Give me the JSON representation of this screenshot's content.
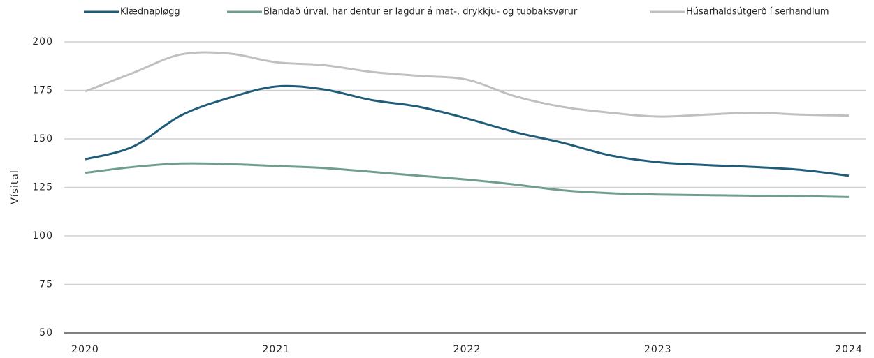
{
  "chart_data": {
    "type": "line",
    "y_label": "Vísital",
    "x": [
      2020,
      2020.25,
      2020.5,
      2020.75,
      2021,
      2021.25,
      2021.5,
      2021.75,
      2022,
      2022.25,
      2022.5,
      2022.75,
      2023,
      2023.25,
      2023.5,
      2023.75,
      2024
    ],
    "series": [
      {
        "name": "Klædnapløgg",
        "color": "#1f5c7a",
        "values": [
          139.5,
          146,
          162,
          171,
          177,
          175.5,
          170,
          166.5,
          160.5,
          153.5,
          148,
          141.5,
          138,
          136.5,
          135.5,
          134,
          131
        ]
      },
      {
        "name": "Blandað úrval, har dentur er lagdur á mat-, drykkju- og tubbaksvørur",
        "color": "#6f9e8a",
        "values": [
          132.5,
          135.5,
          137.3,
          137,
          136,
          135,
          133,
          131,
          129,
          126.5,
          123.5,
          122,
          121.3,
          121,
          120.7,
          120.5,
          120
        ]
      },
      {
        "name": "Húsarhaldsútgerð í serhandlum",
        "color": "#c0c0c0",
        "values": [
          174.5,
          184,
          193.5,
          194,
          189.5,
          188,
          184.5,
          182.5,
          180.5,
          172,
          166.5,
          163.5,
          161.5,
          162.5,
          163.5,
          162.5,
          162
        ]
      }
    ],
    "xlim": [
      2020,
      2024
    ],
    "xticks": [
      2020,
      2021,
      2022,
      2023,
      2024
    ],
    "ylim": [
      50,
      200
    ],
    "yticks": [
      50,
      75,
      100,
      125,
      150,
      175,
      200
    ],
    "grid": true,
    "legend": "top"
  }
}
